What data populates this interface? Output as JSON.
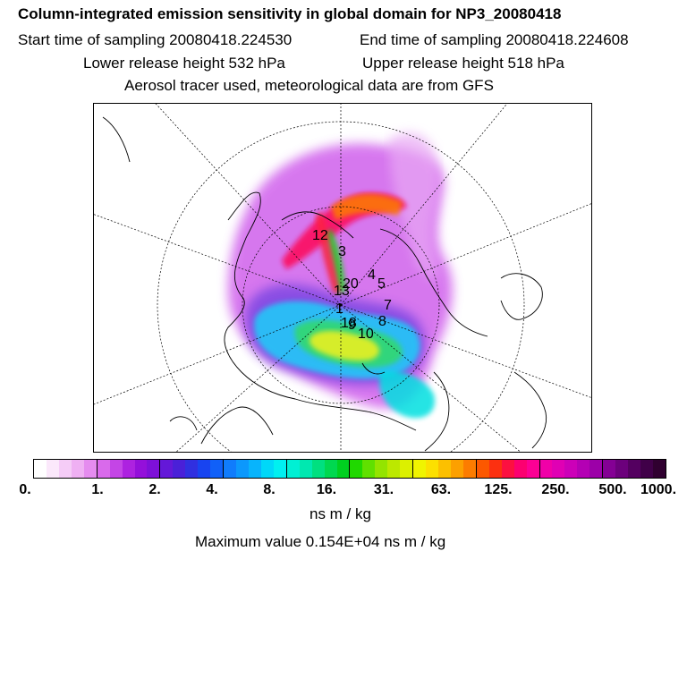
{
  "header": {
    "title": "Column-integrated emission sensitivity in global domain for NP3_20080418",
    "start": "Start time of sampling 20080418.224530",
    "end": "End time of sampling 20080418.224608",
    "lower": "Lower release height  532 hPa",
    "upper": "Upper release height  518 hPa",
    "tracer": "Aerosol tracer used, meteorological data are from GFS"
  },
  "colorbar": {
    "ticks": [
      "0.",
      "1.",
      "2.",
      "4.",
      "8.",
      "16.",
      "31.",
      "63.",
      "125.",
      "250.",
      "500.",
      "1000."
    ],
    "unit": "ns m / kg",
    "colors": [
      "#ffffff",
      "#fbe8fb",
      "#f5ccf7",
      "#efb0f3",
      "#e58cef",
      "#d96aeb",
      "#c445e6",
      "#ad22e0",
      "#9410da",
      "#7e10d8",
      "#6418d8",
      "#4a20d8",
      "#3030e0",
      "#1844f0",
      "#1060f8",
      "#107cfc",
      "#0c98fc",
      "#08b4fc",
      "#00d8f8",
      "#00f0f0",
      "#00f0d4",
      "#00e8b0",
      "#00e080",
      "#00d850",
      "#00d020",
      "#20d800",
      "#60e000",
      "#94e400",
      "#bce800",
      "#dcf000",
      "#f0f400",
      "#fce000",
      "#fcc000",
      "#fca000",
      "#fc7c00",
      "#fc5800",
      "#fc3010",
      "#fc1040",
      "#fc0070",
      "#fc0094",
      "#f000a8",
      "#e000b4",
      "#cc00b8",
      "#b400b4",
      "#9c00a8",
      "#840094",
      "#6c007c",
      "#540060",
      "#400048",
      "#300030"
    ]
  },
  "max_value": "Maximum value  0.154E+04 ns m / kg",
  "map_labels": [
    "12",
    "3",
    "4",
    "5",
    "20",
    "13",
    "1",
    "7",
    "18",
    "9",
    "10",
    "8"
  ]
}
